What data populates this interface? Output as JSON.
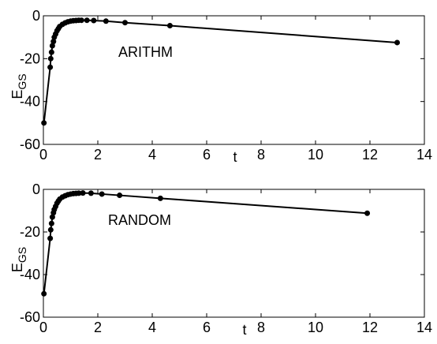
{
  "chart_data": [
    {
      "type": "line",
      "color": "#000000",
      "xlabel": "t",
      "ylabel": "E",
      "ylabel_subscript": "GS",
      "annotation": "ARITHM",
      "x": [
        0.02,
        0.25,
        0.27,
        0.3,
        0.33,
        0.37,
        0.4,
        0.45,
        0.5,
        0.55,
        0.6,
        0.7,
        0.8,
        0.9,
        1.0,
        1.1,
        1.2,
        1.3,
        1.4,
        1.6,
        1.85,
        2.3,
        3.0,
        4.65,
        13.0
      ],
      "values": [
        -50,
        -24,
        -20,
        -17,
        -14,
        -12,
        -10,
        -8.5,
        -7,
        -6,
        -5,
        -4,
        -3.3,
        -2.8,
        -2.5,
        -2.3,
        -2.2,
        -2.1,
        -2.1,
        -2.1,
        -2.2,
        -2.5,
        -3.2,
        -4.6,
        -12.5
      ],
      "xlim": [
        0,
        14
      ],
      "ylim": [
        -60,
        0
      ],
      "xticks": [
        0,
        2,
        4,
        6,
        8,
        10,
        12,
        14
      ],
      "yticks": [
        -60,
        -40,
        -20,
        0
      ]
    },
    {
      "type": "line",
      "color": "#000000",
      "xlabel": "t",
      "ylabel": "E",
      "ylabel_subscript": "GS",
      "annotation": "RANDOM",
      "x": [
        0.02,
        0.25,
        0.27,
        0.3,
        0.33,
        0.37,
        0.4,
        0.45,
        0.5,
        0.55,
        0.6,
        0.7,
        0.8,
        0.9,
        1.0,
        1.1,
        1.2,
        1.3,
        1.45,
        1.75,
        2.15,
        2.8,
        4.3,
        11.9
      ],
      "values": [
        -49,
        -23,
        -19,
        -16,
        -13,
        -11,
        -9.5,
        -8,
        -6.5,
        -5.5,
        -4.6,
        -3.6,
        -3,
        -2.5,
        -2.2,
        -2,
        -1.9,
        -1.8,
        -1.7,
        -1.8,
        -2.2,
        -2.8,
        -4.2,
        -11.2
      ],
      "xlim": [
        0,
        14
      ],
      "ylim": [
        -60,
        0
      ],
      "xticks": [
        0,
        2,
        4,
        6,
        8,
        10,
        12,
        14
      ],
      "yticks": [
        -60,
        -40,
        -20,
        0
      ]
    }
  ]
}
